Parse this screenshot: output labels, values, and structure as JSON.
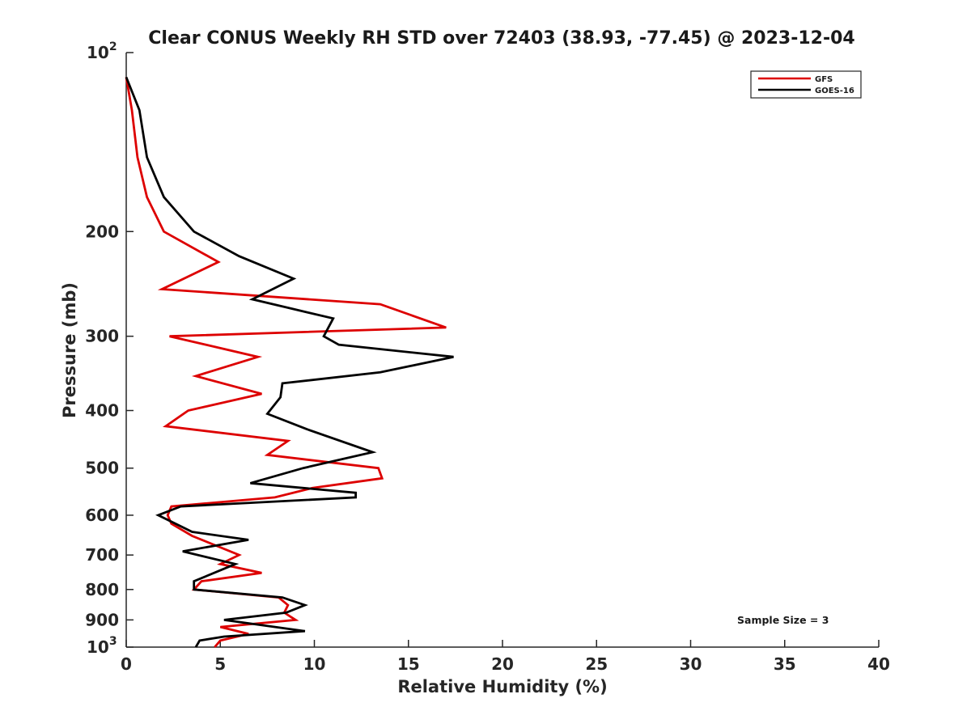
{
  "chart_data": {
    "type": "line",
    "title": "Clear CONUS Weekly RH STD over 72403 (38.93, -77.45) @ 2023-12-04",
    "xlabel": "Relative Humidity (%)",
    "ylabel": "Pressure (mb)",
    "xlim": [
      0,
      40
    ],
    "ylim": [
      1000,
      100
    ],
    "y_scale": "log",
    "y_reversed": true,
    "grid": false,
    "x_ticks": [
      "0",
      "5",
      "10",
      "15",
      "20",
      "25",
      "30",
      "35",
      "40"
    ],
    "y_ticks": [
      {
        "value": 100,
        "base": "10",
        "exp": "2"
      },
      {
        "value": 200,
        "label": "200"
      },
      {
        "value": 300,
        "label": "300"
      },
      {
        "value": 400,
        "label": "400"
      },
      {
        "value": 500,
        "label": "500"
      },
      {
        "value": 600,
        "label": "600"
      },
      {
        "value": 700,
        "label": "700"
      },
      {
        "value": 800,
        "label": "800"
      },
      {
        "value": 900,
        "label": "900"
      },
      {
        "value": 1000,
        "base": "10",
        "exp": "3"
      }
    ],
    "legend": {
      "position": "top-right"
    },
    "annotation": "Sample Size = 3",
    "series": [
      {
        "name": "GFS",
        "color": "#dd0000",
        "points": [
          [
            4.7,
            1000
          ],
          [
            5.0,
            975
          ],
          [
            6.5,
            950
          ],
          [
            5.0,
            925
          ],
          [
            9.0,
            900
          ],
          [
            8.4,
            875
          ],
          [
            8.6,
            850
          ],
          [
            8.1,
            825
          ],
          [
            3.6,
            800
          ],
          [
            4.0,
            775
          ],
          [
            7.2,
            750
          ],
          [
            5.0,
            725
          ],
          [
            6.0,
            700
          ],
          [
            3.5,
            650
          ],
          [
            2.4,
            620
          ],
          [
            2.2,
            600
          ],
          [
            2.4,
            580
          ],
          [
            7.9,
            560
          ],
          [
            9.9,
            540
          ],
          [
            13.6,
            520
          ],
          [
            13.4,
            500
          ],
          [
            7.5,
            475
          ],
          [
            8.6,
            450
          ],
          [
            2.1,
            425
          ],
          [
            3.3,
            400
          ],
          [
            7.2,
            375
          ],
          [
            3.7,
            350
          ],
          [
            7.0,
            325
          ],
          [
            2.3,
            300
          ],
          [
            17.0,
            290
          ],
          [
            13.5,
            265
          ],
          [
            1.9,
            250
          ],
          [
            4.9,
            225
          ],
          [
            2.0,
            200
          ],
          [
            1.1,
            175
          ],
          [
            0.6,
            150
          ],
          [
            0.3,
            125
          ],
          [
            0.0,
            110
          ]
        ]
      },
      {
        "name": "GOES-16",
        "color": "#000000",
        "points": [
          [
            3.7,
            1000
          ],
          [
            3.9,
            975
          ],
          [
            5.2,
            960
          ],
          [
            9.5,
            940
          ],
          [
            5.2,
            900
          ],
          [
            8.5,
            875
          ],
          [
            9.5,
            850
          ],
          [
            8.3,
            825
          ],
          [
            3.6,
            800
          ],
          [
            3.6,
            775
          ],
          [
            5.8,
            725
          ],
          [
            3.0,
            690
          ],
          [
            6.5,
            660
          ],
          [
            3.5,
            640
          ],
          [
            1.7,
            600
          ],
          [
            2.9,
            580
          ],
          [
            12.2,
            560
          ],
          [
            12.2,
            550
          ],
          [
            6.6,
            530
          ],
          [
            9.4,
            500
          ],
          [
            13.1,
            470
          ],
          [
            9.6,
            430
          ],
          [
            7.5,
            405
          ],
          [
            8.2,
            380
          ],
          [
            8.3,
            360
          ],
          [
            13.5,
            345
          ],
          [
            17.4,
            325
          ],
          [
            11.3,
            310
          ],
          [
            10.5,
            300
          ],
          [
            11.0,
            280
          ],
          [
            6.7,
            260
          ],
          [
            8.9,
            240
          ],
          [
            6.0,
            220
          ],
          [
            3.6,
            200
          ],
          [
            2.0,
            175
          ],
          [
            1.1,
            150
          ],
          [
            0.7,
            125
          ],
          [
            0.0,
            110
          ]
        ]
      }
    ]
  }
}
